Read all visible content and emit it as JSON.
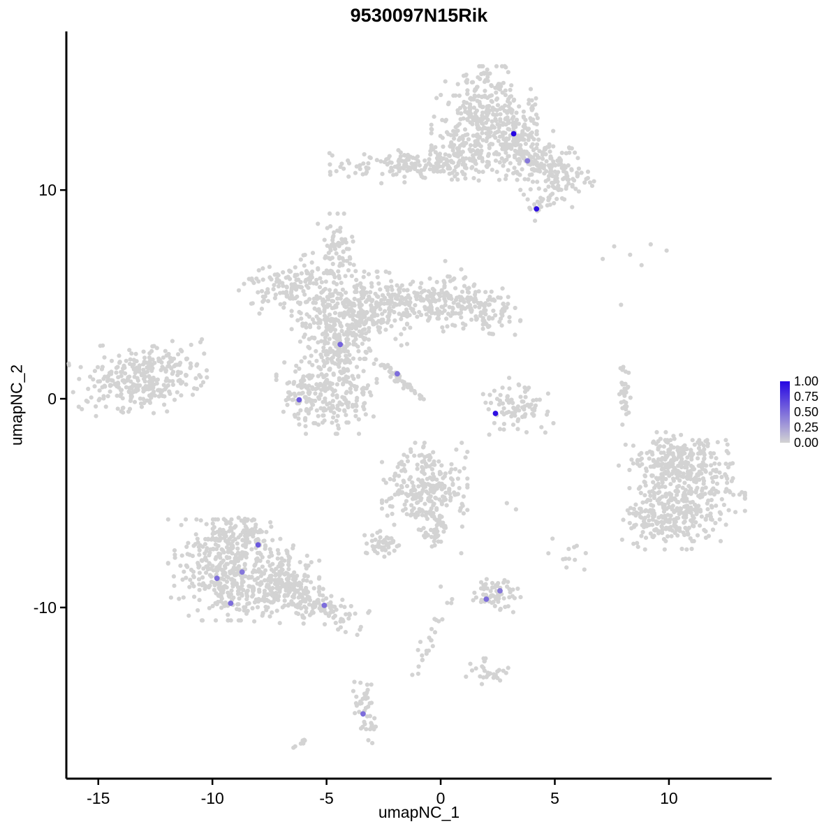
{
  "title": "9530097N15Rik",
  "chart_data": {
    "type": "scatter",
    "title": "9530097N15Rik",
    "xlabel": "umapNC_1",
    "ylabel": "umapNC_2",
    "xlim": [
      -16.4,
      14.5
    ],
    "ylim": [
      -18.2,
      17.6
    ],
    "x_ticks": [
      -15,
      -10,
      -5,
      0,
      5,
      10
    ],
    "y_ticks": [
      10,
      0,
      -10
    ],
    "grid": false,
    "point_color": "#d3d3d3",
    "point_radius": 3.1,
    "expressing_point_radius": 3.9,
    "legend": {
      "position": "right",
      "labels": [
        "1.00",
        "0.75",
        "0.50",
        "0.25",
        "0.00"
      ],
      "low_color": "#d3d3d3",
      "high_color": "#2606e3"
    },
    "seed": 12345,
    "background_clusters": [
      {
        "cx": 1.9,
        "cy": 13.4,
        "sx": 1.05,
        "sy": 1.15,
        "n": 380,
        "rot": 0
      },
      {
        "cx": 3.5,
        "cy": 12.0,
        "sx": 0.65,
        "sy": 0.8,
        "n": 120,
        "rot": 0
      },
      {
        "cx": 4.9,
        "cy": 10.9,
        "sx": 0.85,
        "sy": 0.6,
        "n": 150,
        "rot": -20
      },
      {
        "cx": 4.3,
        "cy": 9.3,
        "sx": 0.3,
        "sy": 0.35,
        "n": 22,
        "rot": 0
      },
      {
        "cx": -1.0,
        "cy": 11.2,
        "sx": 1.75,
        "sy": 0.38,
        "n": 160,
        "rot": 2
      },
      {
        "cx": 0.9,
        "cy": 11.6,
        "sx": 0.55,
        "sy": 0.5,
        "n": 55,
        "rot": 0
      },
      {
        "cx": -13.2,
        "cy": 1.0,
        "sx": 1.35,
        "sy": 0.8,
        "n": 300,
        "rot": 8
      },
      {
        "cx": -4.0,
        "cy": 4.0,
        "sx": 1.15,
        "sy": 0.95,
        "n": 360,
        "rot": 0
      },
      {
        "cx": -6.9,
        "cy": 5.5,
        "sx": 0.95,
        "sy": 0.5,
        "n": 120,
        "rot": 15
      },
      {
        "cx": -4.5,
        "cy": 7.0,
        "sx": 0.4,
        "sy": 0.85,
        "n": 75,
        "rot": 0
      },
      {
        "cx": -0.9,
        "cy": 4.6,
        "sx": 1.65,
        "sy": 0.6,
        "n": 250,
        "rot": -3
      },
      {
        "cx": 1.8,
        "cy": 4.3,
        "sx": 0.8,
        "sy": 0.5,
        "n": 85,
        "rot": -10
      },
      {
        "cx": -1.95,
        "cy": 1.1,
        "sx": 0.75,
        "sy": 0.1,
        "n": 55,
        "rot": -43
      },
      {
        "cx": -5.0,
        "cy": 0.3,
        "sx": 1.0,
        "sy": 0.9,
        "n": 270,
        "rot": 0
      },
      {
        "cx": -4.6,
        "cy": 2.3,
        "sx": 0.45,
        "sy": 0.55,
        "n": 55,
        "rot": 0
      },
      {
        "cx": 3.4,
        "cy": -0.4,
        "sx": 0.7,
        "sy": 0.6,
        "n": 85,
        "rot": 0
      },
      {
        "cx": 8.05,
        "cy": 0.3,
        "sx": 0.12,
        "sy": 0.7,
        "n": 34,
        "rot": 0
      },
      {
        "cx": 10.8,
        "cy": -4.4,
        "sx": 1.15,
        "sy": 1.1,
        "n": 400,
        "rot": 0
      },
      {
        "cx": 9.6,
        "cy": -5.9,
        "sx": 0.75,
        "sy": 0.6,
        "n": 110,
        "rot": 0
      },
      {
        "cx": 10.2,
        "cy": -2.7,
        "sx": 0.8,
        "sy": 0.5,
        "n": 90,
        "rot": 0
      },
      {
        "cx": -0.7,
        "cy": -4.2,
        "sx": 0.85,
        "sy": 0.95,
        "n": 260,
        "rot": 0
      },
      {
        "cx": -0.3,
        "cy": -6.2,
        "sx": 0.3,
        "sy": 0.4,
        "n": 35,
        "rot": 0
      },
      {
        "cx": -2.6,
        "cy": -7.0,
        "sx": 0.35,
        "sy": 0.3,
        "n": 45,
        "rot": 0
      },
      {
        "cx": -9.3,
        "cy": -8.2,
        "sx": 1.2,
        "sy": 1.1,
        "n": 400,
        "rot": 0
      },
      {
        "cx": -7.3,
        "cy": -8.9,
        "sx": 0.9,
        "sy": 0.85,
        "n": 200,
        "rot": 0
      },
      {
        "cx": -8.6,
        "cy": -6.4,
        "sx": 0.6,
        "sy": 0.45,
        "n": 55,
        "rot": 0
      },
      {
        "cx": -5.5,
        "cy": -9.8,
        "sx": 1.05,
        "sy": 0.35,
        "n": 130,
        "rot": -25
      },
      {
        "cx": 2.4,
        "cy": -9.3,
        "sx": 0.5,
        "sy": 0.42,
        "n": 65,
        "rot": 0
      },
      {
        "cx": 5.6,
        "cy": -7.6,
        "sx": 0.4,
        "sy": 0.28,
        "n": 11,
        "rot": 0
      },
      {
        "cx": -0.55,
        "cy": -11.75,
        "sx": 1.0,
        "sy": 0.16,
        "n": 22,
        "rot": 67
      },
      {
        "cx": 2.1,
        "cy": -13.1,
        "sx": 0.45,
        "sy": 0.3,
        "n": 28,
        "rot": 0
      },
      {
        "cx": -3.3,
        "cy": -15.0,
        "sx": 0.24,
        "sy": 0.7,
        "n": 42,
        "rot": 0
      },
      {
        "cx": -6.1,
        "cy": -16.6,
        "sx": 0.22,
        "sy": 0.17,
        "n": 8,
        "rot": 0
      }
    ],
    "background_singles": [
      [
        7.6,
        7.3
      ],
      [
        8.3,
        6.9
      ],
      [
        9.2,
        7.4
      ],
      [
        9.9,
        7.1
      ],
      [
        8.8,
        6.4
      ],
      [
        7.1,
        6.7
      ],
      [
        7.9,
        4.5
      ],
      [
        0.2,
        6.6
      ],
      [
        0.9,
        6.2
      ],
      [
        2.9,
        -5.0
      ],
      [
        3.3,
        -5.3
      ],
      [
        4.9,
        -6.7
      ],
      [
        0.0,
        -9.0
      ],
      [
        0.5,
        -9.6
      ],
      [
        1.3,
        -12.7
      ],
      [
        2.2,
        -0.2
      ],
      [
        3.0,
        1.0
      ],
      [
        -0.2,
        -10.6
      ],
      [
        0.9,
        -7.4
      ],
      [
        8.1,
        -2.2
      ],
      [
        7.8,
        -3.2
      ],
      [
        8.0,
        -5.8
      ]
    ],
    "expressing_cells": [
      {
        "x": 3.2,
        "y": 12.7,
        "value": 1.0
      },
      {
        "x": 3.8,
        "y": 11.4,
        "value": 0.45
      },
      {
        "x": 4.2,
        "y": 9.1,
        "value": 0.95
      },
      {
        "x": -4.4,
        "y": 2.6,
        "value": 0.55
      },
      {
        "x": -1.9,
        "y": 1.2,
        "value": 0.5
      },
      {
        "x": -6.2,
        "y": -0.05,
        "value": 0.6
      },
      {
        "x": 2.4,
        "y": -0.7,
        "value": 0.95
      },
      {
        "x": -8.0,
        "y": -7.0,
        "value": 0.6
      },
      {
        "x": -9.8,
        "y": -8.6,
        "value": 0.5
      },
      {
        "x": -8.7,
        "y": -8.3,
        "value": 0.45
      },
      {
        "x": -9.2,
        "y": -9.8,
        "value": 0.5
      },
      {
        "x": -5.1,
        "y": -9.9,
        "value": 0.5
      },
      {
        "x": 2.0,
        "y": -9.6,
        "value": 0.5
      },
      {
        "x": 2.6,
        "y": -9.2,
        "value": 0.45
      },
      {
        "x": -3.4,
        "y": -15.1,
        "value": 0.5
      }
    ]
  }
}
